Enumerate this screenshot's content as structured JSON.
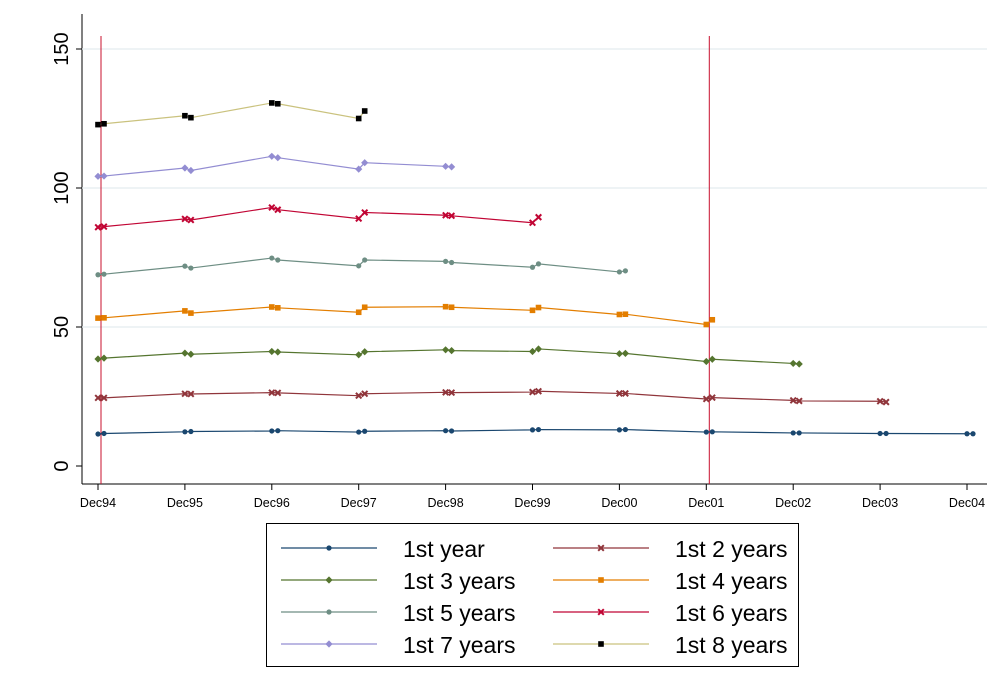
{
  "chart_data": {
    "type": "line",
    "title": "",
    "xlabel": "",
    "ylabel": "",
    "ylim": [
      -5,
      150
    ],
    "yticks": [
      0,
      50,
      100,
      150
    ],
    "x_labels": [
      "Dec94",
      "Dec95",
      "Dec96",
      "Dec97",
      "Dec98",
      "Dec99",
      "Dec00",
      "Dec01",
      "Dec02",
      "Dec03",
      "Dec04"
    ],
    "grid": true,
    "legend_position": "bottom",
    "vertical_reference_lines": [
      "Dec94",
      "Dec01"
    ],
    "reference_line_color": "#c8102e",
    "series": [
      {
        "name": "1st year",
        "color": "#1a476f",
        "marker": "circle",
        "points": [
          [
            "Dec94",
            11.5
          ],
          [
            "Dec94",
            11.7
          ],
          [
            "Dec95",
            12.3
          ],
          [
            "Dec95",
            12.4
          ],
          [
            "Dec96",
            12.6
          ],
          [
            "Dec96",
            12.7
          ],
          [
            "Dec97",
            12.2
          ],
          [
            "Dec97",
            12.5
          ],
          [
            "Dec98",
            12.7
          ],
          [
            "Dec98",
            12.6
          ],
          [
            "Dec99",
            13
          ],
          [
            "Dec99",
            13.1
          ],
          [
            "Dec00",
            13
          ],
          [
            "Dec00",
            13.1
          ],
          [
            "Dec01",
            12.2
          ],
          [
            "Dec01",
            12.3
          ],
          [
            "Dec02",
            11.9
          ],
          [
            "Dec02",
            11.9
          ],
          [
            "Dec03",
            11.7
          ],
          [
            "Dec03",
            11.7
          ],
          [
            "Dec04",
            11.6
          ],
          [
            "Dec04",
            11.6
          ]
        ]
      },
      {
        "name": "1st 2 years",
        "color": "#90353b",
        "marker": "x",
        "points": [
          [
            "Dec94",
            24.5
          ],
          [
            "Dec94",
            24.5
          ],
          [
            "Dec95",
            26
          ],
          [
            "Dec95",
            25.9
          ],
          [
            "Dec96",
            26.4
          ],
          [
            "Dec96",
            26.3
          ],
          [
            "Dec97",
            25.3
          ],
          [
            "Dec97",
            26
          ],
          [
            "Dec98",
            26.5
          ],
          [
            "Dec98",
            26.4
          ],
          [
            "Dec99",
            26.6
          ],
          [
            "Dec99",
            26.9
          ],
          [
            "Dec00",
            26.1
          ],
          [
            "Dec00",
            26.1
          ],
          [
            "Dec01",
            24.1
          ],
          [
            "Dec01",
            24.6
          ],
          [
            "Dec02",
            23.6
          ],
          [
            "Dec02",
            23.4
          ],
          [
            "Dec03",
            23.3
          ],
          [
            "Dec03",
            23
          ]
        ]
      },
      {
        "name": "1st 3 years",
        "color": "#55752f",
        "marker": "diamond",
        "points": [
          [
            "Dec94",
            38.5
          ],
          [
            "Dec94",
            38.8
          ],
          [
            "Dec95",
            40.6
          ],
          [
            "Dec95",
            40.2
          ],
          [
            "Dec96",
            41.2
          ],
          [
            "Dec96",
            41
          ],
          [
            "Dec97",
            40
          ],
          [
            "Dec97",
            41.1
          ],
          [
            "Dec98",
            41.8
          ],
          [
            "Dec98",
            41.5
          ],
          [
            "Dec99",
            41.2
          ],
          [
            "Dec99",
            42.1
          ],
          [
            "Dec00",
            40.4
          ],
          [
            "Dec00",
            40.5
          ],
          [
            "Dec01",
            37.6
          ],
          [
            "Dec01",
            38.4
          ],
          [
            "Dec02",
            36.9
          ],
          [
            "Dec02",
            36.7
          ]
        ]
      },
      {
        "name": "1st 4 years",
        "color": "#e37e00",
        "marker": "square",
        "points": [
          [
            "Dec94",
            53.2
          ],
          [
            "Dec94",
            53.3
          ],
          [
            "Dec95",
            55.8
          ],
          [
            "Dec95",
            55
          ],
          [
            "Dec96",
            57.2
          ],
          [
            "Dec96",
            56.9
          ],
          [
            "Dec97",
            55.3
          ],
          [
            "Dec97",
            57.1
          ],
          [
            "Dec98",
            57.3
          ],
          [
            "Dec98",
            57.1
          ],
          [
            "Dec99",
            56
          ],
          [
            "Dec99",
            57
          ],
          [
            "Dec00",
            54.5
          ],
          [
            "Dec00",
            54.6
          ],
          [
            "Dec01",
            50.9
          ],
          [
            "Dec01",
            52.6
          ]
        ]
      },
      {
        "name": "1st 5 years",
        "color": "#6e8e84",
        "marker": "circle",
        "points": [
          [
            "Dec94",
            68.8
          ],
          [
            "Dec94",
            69
          ],
          [
            "Dec95",
            71.9
          ],
          [
            "Dec95",
            71.2
          ],
          [
            "Dec96",
            74.8
          ],
          [
            "Dec96",
            74.1
          ],
          [
            "Dec97",
            72
          ],
          [
            "Dec97",
            74.1
          ],
          [
            "Dec98",
            73.6
          ],
          [
            "Dec98",
            73.2
          ],
          [
            "Dec99",
            71.5
          ],
          [
            "Dec99",
            72.7
          ],
          [
            "Dec00",
            69.8
          ],
          [
            "Dec00",
            70.2
          ]
        ]
      },
      {
        "name": "1st 6 years",
        "color": "#c10534",
        "marker": "x",
        "points": [
          [
            "Dec94",
            85.9
          ],
          [
            "Dec94",
            86.1
          ],
          [
            "Dec95",
            88.9
          ],
          [
            "Dec95",
            88.5
          ],
          [
            "Dec96",
            93
          ],
          [
            "Dec96",
            92.2
          ],
          [
            "Dec97",
            89
          ],
          [
            "Dec97",
            91.2
          ],
          [
            "Dec98",
            90.2
          ],
          [
            "Dec98",
            90
          ],
          [
            "Dec99",
            87.5
          ],
          [
            "Dec99",
            89.5
          ]
        ]
      },
      {
        "name": "1st 7 years",
        "color": "#938dd2",
        "marker": "diamond",
        "points": [
          [
            "Dec94",
            104.2
          ],
          [
            "Dec94",
            104.3
          ],
          [
            "Dec95",
            107.2
          ],
          [
            "Dec95",
            106.3
          ],
          [
            "Dec96",
            111.4
          ],
          [
            "Dec96",
            110.9
          ],
          [
            "Dec97",
            106.8
          ],
          [
            "Dec97",
            109.1
          ],
          [
            "Dec98",
            107.8
          ],
          [
            "Dec98",
            107.6
          ]
        ]
      },
      {
        "name": "1st 8 years",
        "color": "#cac27e",
        "marker": "square",
        "marker_color": "#000000",
        "points": [
          [
            "Dec94",
            122.8
          ],
          [
            "Dec94",
            123.1
          ],
          [
            "Dec95",
            126
          ],
          [
            "Dec95",
            125.3
          ],
          [
            "Dec96",
            130.6
          ],
          [
            "Dec96",
            130.3
          ],
          [
            "Dec97",
            125
          ],
          [
            "Dec97",
            127.7
          ]
        ]
      }
    ]
  }
}
